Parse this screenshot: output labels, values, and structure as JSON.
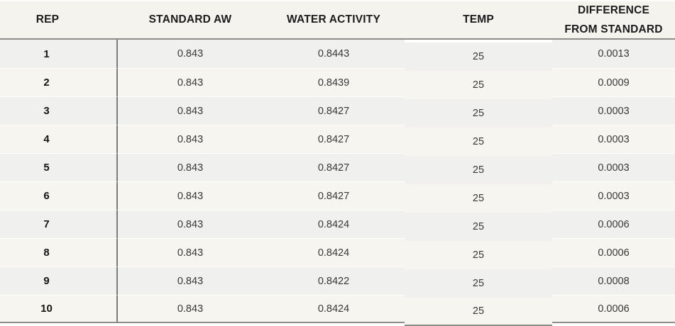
{
  "table": {
    "columns": [
      {
        "key": "rep",
        "label": "REP"
      },
      {
        "key": "standard_aw",
        "label": "STANDARD AW"
      },
      {
        "key": "water_activity",
        "label": "WATER ACTIVITY"
      },
      {
        "key": "temp",
        "label": "TEMP"
      },
      {
        "key": "difference",
        "label": "DIFFERENCE FROM STANDARD"
      }
    ],
    "rows": [
      {
        "rep": "1",
        "standard_aw": "0.843",
        "water_activity": "0.8443",
        "temp": "25",
        "difference": "0.0013"
      },
      {
        "rep": "2",
        "standard_aw": "0.843",
        "water_activity": "0.8439",
        "temp": "25",
        "difference": "0.0009"
      },
      {
        "rep": "3",
        "standard_aw": "0.843",
        "water_activity": "0.8427",
        "temp": "25",
        "difference": "0.0003"
      },
      {
        "rep": "4",
        "standard_aw": "0.843",
        "water_activity": "0.8427",
        "temp": "25",
        "difference": "0.0003"
      },
      {
        "rep": "5",
        "standard_aw": "0.843",
        "water_activity": "0.8427",
        "temp": "25",
        "difference": "0.0003"
      },
      {
        "rep": "6",
        "standard_aw": "0.843",
        "water_activity": "0.8427",
        "temp": "25",
        "difference": "0.0003"
      },
      {
        "rep": "7",
        "standard_aw": "0.843",
        "water_activity": "0.8424",
        "temp": "25",
        "difference": "0.0006"
      },
      {
        "rep": "8",
        "standard_aw": "0.843",
        "water_activity": "0.8424",
        "temp": "25",
        "difference": "0.0006"
      },
      {
        "rep": "9",
        "standard_aw": "0.843",
        "water_activity": "0.8422",
        "temp": "25",
        "difference": "0.0008"
      },
      {
        "rep": "10",
        "standard_aw": "0.843",
        "water_activity": "0.8424",
        "temp": "25",
        "difference": "0.0006"
      }
    ]
  },
  "colors": {
    "header_bg": "#f5f3ee",
    "row_odd_bg": "#f0f0ef",
    "row_even_bg": "#f6f5f0",
    "column_divider": "#7d7c7a",
    "header_rule": "#8e8d8b",
    "header_text": "#1b1b1b",
    "body_text": "#383838"
  },
  "chart_data": {
    "type": "table",
    "columns": [
      "REP",
      "STANDARD AW",
      "WATER ACTIVITY",
      "TEMP",
      "DIFFERENCE FROM STANDARD"
    ],
    "rows": [
      [
        1,
        0.843,
        0.8443,
        25,
        0.0013
      ],
      [
        2,
        0.843,
        0.8439,
        25,
        0.0009
      ],
      [
        3,
        0.843,
        0.8427,
        25,
        0.0003
      ],
      [
        4,
        0.843,
        0.8427,
        25,
        0.0003
      ],
      [
        5,
        0.843,
        0.8427,
        25,
        0.0003
      ],
      [
        6,
        0.843,
        0.8427,
        25,
        0.0003
      ],
      [
        7,
        0.843,
        0.8424,
        25,
        0.0006
      ],
      [
        8,
        0.843,
        0.8424,
        25,
        0.0006
      ],
      [
        9,
        0.843,
        0.8422,
        25,
        0.0008
      ],
      [
        10,
        0.843,
        0.8424,
        25,
        0.0006
      ]
    ]
  }
}
